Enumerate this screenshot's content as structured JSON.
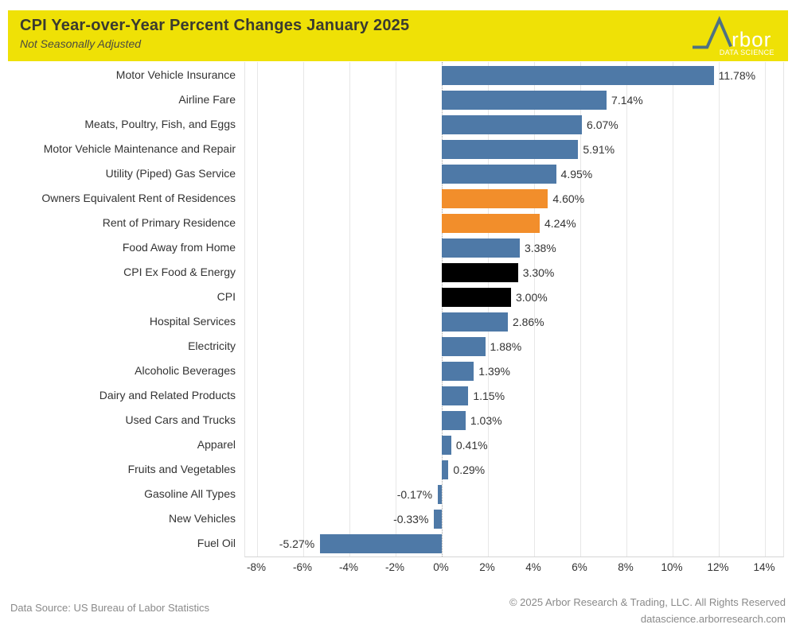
{
  "header": {
    "title": "CPI Year-over-Year Percent Changes January 2025",
    "subtitle": "Not Seasonally Adjusted",
    "logo": {
      "brand_text": "rbor",
      "tagline": "DATA SCIENCE"
    }
  },
  "chart_data": {
    "type": "bar",
    "orientation": "horizontal",
    "title": "CPI Year-over-Year Percent Changes January 2025",
    "subtitle": "Not Seasonally Adjusted",
    "categories": [
      "Motor Vehicle Insurance",
      "Airline Fare",
      "Meats, Poultry, Fish, and Eggs",
      "Motor Vehicle Maintenance and Repair",
      "Utility (Piped) Gas Service",
      "Owners Equivalent Rent of Residences",
      "Rent of Primary Residence",
      "Food Away from Home",
      "CPI Ex Food & Energy",
      "CPI",
      "Hospital Services",
      "Electricity",
      "Alcoholic Beverages",
      "Dairy and Related Products",
      "Used Cars and Trucks",
      "Apparel",
      "Fruits and Vegetables",
      "Gasoline All Types",
      "New Vehicles",
      "Fuel Oil"
    ],
    "values": [
      11.78,
      7.14,
      6.07,
      5.91,
      4.95,
      4.6,
      4.24,
      3.38,
      3.3,
      3.0,
      2.86,
      1.88,
      1.39,
      1.15,
      1.03,
      0.41,
      0.29,
      -0.17,
      -0.33,
      -5.27
    ],
    "value_labels": [
      "11.78%",
      "7.14%",
      "6.07%",
      "5.91%",
      "4.95%",
      "4.60%",
      "4.24%",
      "3.38%",
      "3.30%",
      "3.00%",
      "2.86%",
      "1.88%",
      "1.39%",
      "1.15%",
      "1.03%",
      "0.41%",
      "0.29%",
      "-0.17%",
      "-0.33%",
      "-5.27%"
    ],
    "bar_color_keys": [
      "blue",
      "blue",
      "blue",
      "blue",
      "blue",
      "orange",
      "orange",
      "blue",
      "black",
      "black",
      "blue",
      "blue",
      "blue",
      "blue",
      "blue",
      "blue",
      "blue",
      "blue",
      "blue",
      "blue"
    ],
    "xtick_values": [
      -8,
      -6,
      -4,
      -2,
      0,
      2,
      4,
      6,
      8,
      10,
      12,
      14
    ],
    "xtick_labels": [
      "-8%",
      "-6%",
      "-4%",
      "-2%",
      "0%",
      "2%",
      "4%",
      "6%",
      "8%",
      "10%",
      "12%",
      "14%"
    ],
    "xlim": [
      -8.5,
      14.9
    ],
    "grid": true,
    "zero_line": "dotted",
    "xlabel": "",
    "ylabel": ""
  },
  "colors": {
    "bar_blue": "#4E79A7",
    "bar_orange": "#F28E2B",
    "bar_black": "#000000",
    "header_yellow": "#EFE106",
    "logo_mark": "#4E7183",
    "logo_text": "#FFFFFF",
    "grid": "#E7E7E7",
    "zero_line": "#A3A3A3",
    "text_dark": "#333333",
    "footer_gray": "#8A8A8A"
  },
  "footer": {
    "source": "Data Source: US Bureau of Labor Statistics",
    "copyright": "© 2025 Arbor Research & Trading, LLC. All Rights Reserved",
    "website": "datascience.arborresearch.com"
  }
}
